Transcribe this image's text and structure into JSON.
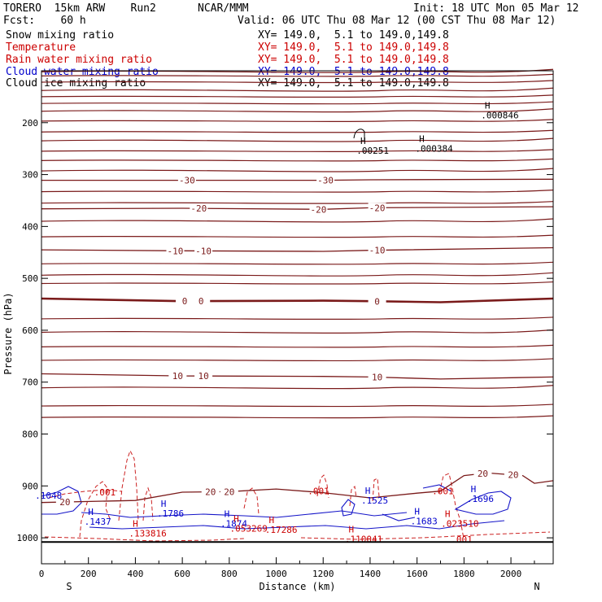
{
  "header": {
    "model": "TORERO  15km ARW    Run2",
    "org": "NCAR/MMM",
    "init": "Init: 18 UTC Mon 05 Mar 12",
    "fcst": "Fcst:    60 h",
    "valid": "Valid: 06 UTC Thu 08 Mar 12 (00 CST Thu 08 Mar 12)"
  },
  "legend": [
    {
      "name": "Snow mixing ratio",
      "range": "XY= 149.0,  5.1 to 149.0,149.8",
      "color": "#000000"
    },
    {
      "name": "Temperature",
      "range": "XY= 149.0,  5.1 to 149.0,149.8",
      "color": "#cc0000"
    },
    {
      "name": "Rain water mixing ratio",
      "range": "XY= 149.0,  5.1 to 149.0,149.8",
      "color": "#cc0000"
    },
    {
      "name": "Cloud water mixing ratio",
      "range": "XY= 149.0,  5.1 to 149.0,149.8",
      "color": "#0000cc"
    },
    {
      "name": "Cloud ice mixing ratio",
      "range": "XY= 149.0,  5.1 to 149.0,149.8",
      "color": "#000000"
    }
  ],
  "chart_data": {
    "type": "line",
    "title": "Vertical cross section",
    "xlabel": "Distance (km)",
    "ylabel": "Pressure (hPa)",
    "xlim": [
      0,
      2180
    ],
    "ylim": [
      1050,
      100
    ],
    "x_ticks": [
      0,
      200,
      400,
      600,
      800,
      1000,
      1200,
      1400,
      1600,
      1800,
      2000
    ],
    "y_ticks": [
      200,
      300,
      400,
      500,
      600,
      700,
      800,
      900,
      1000
    ],
    "direction_labels": {
      "left": "S",
      "right": "N"
    },
    "temperature_isotherms": [
      {
        "value": -30,
        "pressure_profile": [
          [
            0,
            311
          ],
          [
            600,
            311
          ],
          [
            1200,
            311
          ],
          [
            1400,
            310
          ],
          [
            2180,
            309
          ]
        ],
        "labels": [
          {
            "x": 620,
            "text": "-30"
          },
          {
            "x": 1210,
            "text": "-30"
          }
        ]
      },
      {
        "value": -20,
        "pressure_profile": [
          [
            0,
            366
          ],
          [
            600,
            365
          ],
          [
            1200,
            367
          ],
          [
            1400,
            364
          ],
          [
            2180,
            362
          ]
        ],
        "labels": [
          {
            "x": 670,
            "text": "-20"
          },
          {
            "x": 1180,
            "text": "-20"
          },
          {
            "x": 1430,
            "text": "-20"
          }
        ]
      },
      {
        "value": -10,
        "pressure_profile": [
          [
            0,
            445
          ],
          [
            600,
            447
          ],
          [
            1200,
            448
          ],
          [
            1400,
            446
          ],
          [
            2180,
            441
          ]
        ],
        "labels": [
          {
            "x": 570,
            "text": "-10"
          },
          {
            "x": 690,
            "text": "-10"
          },
          {
            "x": 1430,
            "text": "-10"
          }
        ]
      },
      {
        "value": 0,
        "pressure_profile": [
          [
            0,
            539
          ],
          [
            600,
            544
          ],
          [
            1200,
            543
          ],
          [
            1400,
            544
          ],
          [
            1700,
            546
          ],
          [
            2180,
            539
          ]
        ],
        "labels": [
          {
            "x": 610,
            "text": "0"
          },
          {
            "x": 680,
            "text": "0"
          },
          {
            "x": 1430,
            "text": "0"
          }
        ]
      },
      {
        "value": 10,
        "pressure_profile": [
          [
            0,
            684
          ],
          [
            600,
            688
          ],
          [
            1200,
            689
          ],
          [
            1400,
            690
          ],
          [
            1700,
            694
          ],
          [
            2180,
            690
          ]
        ],
        "labels": [
          {
            "x": 580,
            "text": "10"
          },
          {
            "x": 690,
            "text": "10"
          },
          {
            "x": 1430,
            "text": "10"
          }
        ]
      },
      {
        "value": 20,
        "pressure_profile": [
          [
            0,
            932
          ],
          [
            400,
            928
          ],
          [
            600,
            912
          ],
          [
            800,
            911
          ],
          [
            1000,
            906
          ],
          [
            1200,
            913
          ],
          [
            1400,
            923
          ],
          [
            1600,
            914
          ],
          [
            1700,
            910
          ],
          [
            1800,
            880
          ],
          [
            1900,
            875
          ],
          [
            2050,
            880
          ],
          [
            2100,
            895
          ],
          [
            2180,
            890
          ]
        ],
        "labels": [
          {
            "x": 720,
            "text": "20"
          },
          {
            "x": 800,
            "text": "20"
          },
          {
            "x": 1880,
            "text": "20"
          },
          {
            "x": 100,
            "text": "20"
          },
          {
            "x": 2010,
            "text": "20"
          }
        ]
      }
    ],
    "surface_pressure": 1008,
    "labels": [
      {
        "type": "high",
        "text": "H",
        "x": 1900,
        "p": 173,
        "value": ".000846",
        "color": "#000000"
      },
      {
        "type": "high",
        "text": "H",
        "x": 1620,
        "p": 237,
        "value": ".000384",
        "color": "#000000"
      },
      {
        "type": "high",
        "text": "H",
        "x": 1370,
        "p": 241,
        "value": ".00251",
        "color": "#000000"
      },
      {
        "type": "high",
        "text": "H",
        "x": 210,
        "p": 956,
        "value": ".1437",
        "color": "#0000cc"
      },
      {
        "type": "high",
        "text": "H",
        "x": 520,
        "p": 940,
        "value": ".1786",
        "color": "#0000cc"
      },
      {
        "type": "high",
        "text": "H",
        "x": 790,
        "p": 960,
        "value": ".1874",
        "color": "#0000cc"
      },
      {
        "type": "high",
        "text": "H",
        "x": 1390,
        "p": 915,
        "value": ".1525",
        "color": "#0000cc"
      },
      {
        "type": "high",
        "text": "H",
        "x": 1600,
        "p": 955,
        "value": ".1683",
        "color": "#0000cc"
      },
      {
        "type": "high",
        "text": "H",
        "x": 1840,
        "p": 912,
        "value": ".1696",
        "color": "#0000cc"
      },
      {
        "type": "high",
        "text": "H",
        "x": 400,
        "p": 979,
        "value": ".133816",
        "color": "#cc0000"
      },
      {
        "type": "high",
        "text": "H",
        "x": 1320,
        "p": 990,
        "value": ".110041",
        "color": "#cc0000"
      },
      {
        "type": "high",
        "text": "H",
        "x": 980,
        "p": 972,
        "value": ".17286",
        "color": "#cc0000"
      },
      {
        "type": "high",
        "text": "H",
        "x": 830,
        "p": 969,
        "value": ".053269",
        "color": "#cc0000"
      },
      {
        "type": "high",
        "text": "H",
        "x": 1730,
        "p": 960,
        "value": ".023510",
        "color": "#cc0000"
      },
      {
        "type": "contour",
        "text": ".001",
        "x": 270,
        "p": 912,
        "color": "#cc0000"
      },
      {
        "type": "contour",
        "text": ".001",
        "x": 1180,
        "p": 910,
        "color": "#cc0000"
      },
      {
        "type": "contour",
        "text": ".001",
        "x": 1710,
        "p": 910,
        "color": "#cc0000"
      },
      {
        "type": "contour",
        "text": ".001",
        "x": 1790,
        "p": 1003,
        "color": "#cc0000"
      },
      {
        "type": "contour",
        "text": ".1048",
        "x": 30,
        "p": 918,
        "color": "#0000cc"
      }
    ]
  }
}
